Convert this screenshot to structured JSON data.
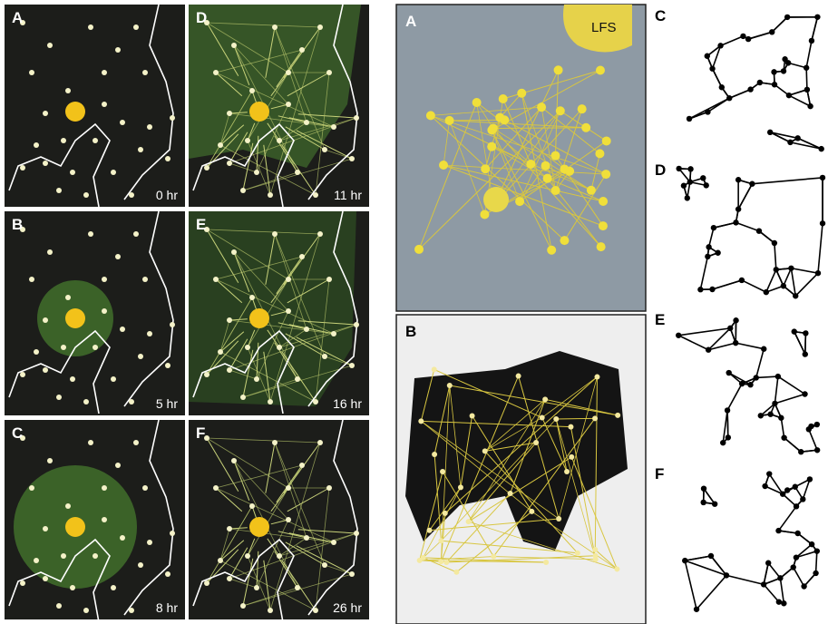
{
  "time_lapse": {
    "panels": [
      {
        "label": "A",
        "time": "0 hr"
      },
      {
        "label": "B",
        "time": "5 hr"
      },
      {
        "label": "C",
        "time": "8 hr"
      },
      {
        "label": "D",
        "time": "11 hr"
      },
      {
        "label": "E",
        "time": "16 hr"
      },
      {
        "label": "F",
        "time": "26 hr"
      }
    ]
  },
  "photo_panels": [
    {
      "label": "A",
      "annotation": "LFS"
    },
    {
      "label": "B"
    }
  ],
  "network_panels": [
    {
      "label": "C"
    },
    {
      "label": "D"
    },
    {
      "label": "E"
    },
    {
      "label": "F"
    }
  ]
}
